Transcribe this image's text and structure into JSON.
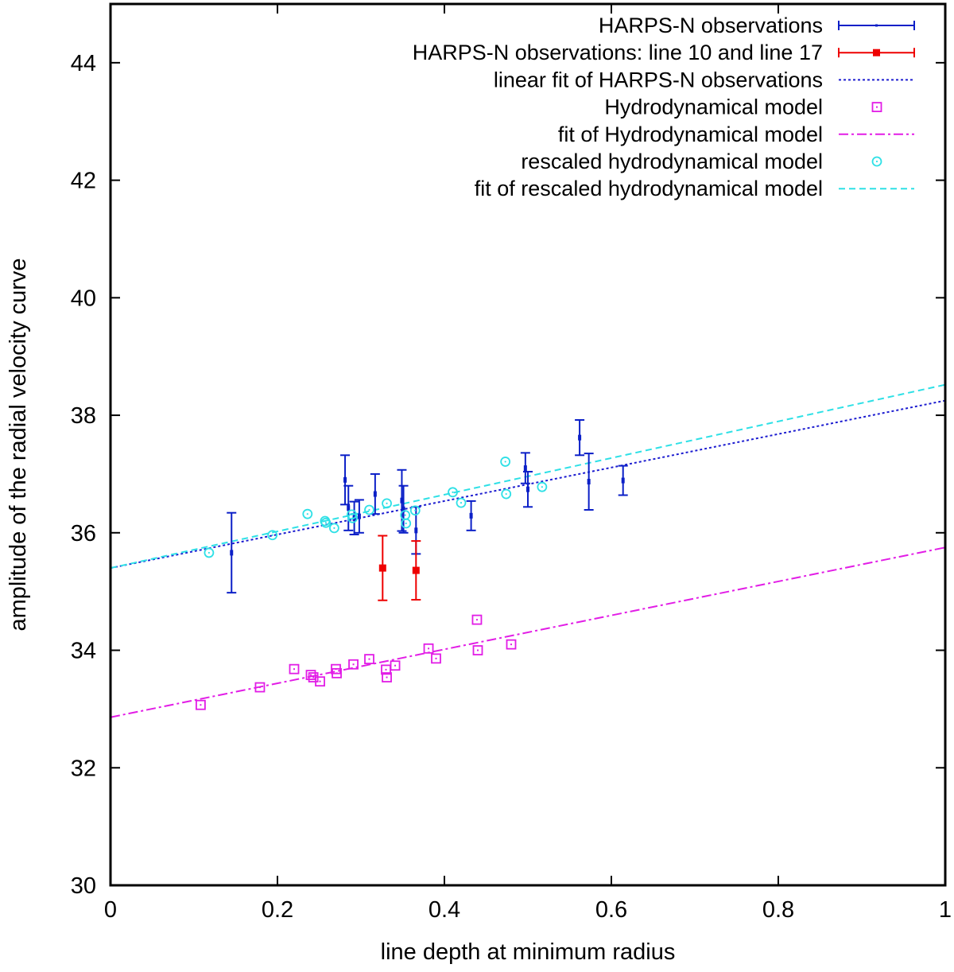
{
  "chart_data": {
    "type": "scatter",
    "xlabel": "line depth at minimum radius",
    "ylabel": "amplitude of the radial velocity curve",
    "xlim": [
      0,
      1
    ],
    "ylim": [
      30,
      45
    ],
    "xticks": [
      0,
      0.2,
      0.4,
      0.6,
      0.8,
      1
    ],
    "xtick_labels": [
      "0",
      "0.2",
      "0.4",
      "0.6",
      "0.8",
      "1"
    ],
    "yticks": [
      30,
      32,
      34,
      36,
      38,
      40,
      42,
      44
    ],
    "ytick_labels": [
      "30",
      "32",
      "34",
      "36",
      "38",
      "40",
      "42",
      "44"
    ],
    "grid": false,
    "legend_position": "top-right",
    "series": [
      {
        "name": "HARPS-N observations",
        "kind": "errorbar",
        "color": "#0b1fc7",
        "points": [
          {
            "x": 0.145,
            "y": 35.66,
            "err": 0.68
          },
          {
            "x": 0.281,
            "y": 36.9,
            "err": 0.42
          },
          {
            "x": 0.285,
            "y": 36.42,
            "err": 0.38
          },
          {
            "x": 0.292,
            "y": 36.25,
            "err": 0.28
          },
          {
            "x": 0.298,
            "y": 36.28,
            "err": 0.28
          },
          {
            "x": 0.317,
            "y": 36.66,
            "err": 0.34
          },
          {
            "x": 0.349,
            "y": 36.55,
            "err": 0.52
          },
          {
            "x": 0.351,
            "y": 36.4,
            "err": 0.4
          },
          {
            "x": 0.366,
            "y": 36.04,
            "err": 0.4
          },
          {
            "x": 0.432,
            "y": 36.29,
            "err": 0.25
          },
          {
            "x": 0.497,
            "y": 37.1,
            "err": 0.26
          },
          {
            "x": 0.5,
            "y": 36.74,
            "err": 0.3
          },
          {
            "x": 0.562,
            "y": 37.62,
            "err": 0.3
          },
          {
            "x": 0.573,
            "y": 36.87,
            "err": 0.48
          },
          {
            "x": 0.614,
            "y": 36.89,
            "err": 0.25
          }
        ]
      },
      {
        "name": "HARPS-N observations: line 10 and line 17",
        "kind": "errorbar",
        "color": "#ee0000",
        "points": [
          {
            "x": 0.326,
            "y": 35.4,
            "err": 0.55
          },
          {
            "x": 0.366,
            "y": 35.36,
            "err": 0.5
          }
        ]
      },
      {
        "name": "linear fit of HARPS-N observations",
        "kind": "line",
        "color": "#1d1dd0",
        "dash": "dotted",
        "intercept": 35.4,
        "slope": 2.85
      },
      {
        "name": "Hydrodynamical model",
        "kind": "scatter",
        "marker": "open-square",
        "color": "#e21de6",
        "points": [
          {
            "x": 0.108,
            "y": 33.07
          },
          {
            "x": 0.179,
            "y": 33.37
          },
          {
            "x": 0.22,
            "y": 33.68
          },
          {
            "x": 0.24,
            "y": 33.58
          },
          {
            "x": 0.243,
            "y": 33.54
          },
          {
            "x": 0.251,
            "y": 33.47
          },
          {
            "x": 0.27,
            "y": 33.68
          },
          {
            "x": 0.271,
            "y": 33.61
          },
          {
            "x": 0.291,
            "y": 33.76
          },
          {
            "x": 0.31,
            "y": 33.85
          },
          {
            "x": 0.33,
            "y": 33.67
          },
          {
            "x": 0.331,
            "y": 33.54
          },
          {
            "x": 0.341,
            "y": 33.74
          },
          {
            "x": 0.381,
            "y": 34.03
          },
          {
            "x": 0.39,
            "y": 33.86
          },
          {
            "x": 0.439,
            "y": 34.52
          },
          {
            "x": 0.44,
            "y": 34.0
          },
          {
            "x": 0.48,
            "y": 34.1
          }
        ]
      },
      {
        "name": "fit of Hydrodynamical model",
        "kind": "line",
        "color": "#e21de6",
        "dash": "dashdot",
        "intercept": 32.86,
        "slope": 2.89
      },
      {
        "name": "rescaled hydrodynamical model",
        "kind": "scatter",
        "marker": "open-circle",
        "color": "#2ee0e6",
        "points": [
          {
            "x": 0.118,
            "y": 35.66
          },
          {
            "x": 0.194,
            "y": 35.96
          },
          {
            "x": 0.236,
            "y": 36.32
          },
          {
            "x": 0.257,
            "y": 36.2
          },
          {
            "x": 0.258,
            "y": 36.17
          },
          {
            "x": 0.268,
            "y": 36.08
          },
          {
            "x": 0.289,
            "y": 36.31
          },
          {
            "x": 0.29,
            "y": 36.25
          },
          {
            "x": 0.31,
            "y": 36.39
          },
          {
            "x": 0.331,
            "y": 36.5
          },
          {
            "x": 0.353,
            "y": 36.3
          },
          {
            "x": 0.354,
            "y": 36.16
          },
          {
            "x": 0.365,
            "y": 36.38
          },
          {
            "x": 0.41,
            "y": 36.69
          },
          {
            "x": 0.42,
            "y": 36.51
          },
          {
            "x": 0.473,
            "y": 37.21
          },
          {
            "x": 0.474,
            "y": 36.66
          },
          {
            "x": 0.517,
            "y": 36.78
          }
        ]
      },
      {
        "name": "fit of rescaled hydrodynamical model",
        "kind": "line",
        "color": "#2ee0e6",
        "dash": "dashed",
        "intercept": 35.4,
        "slope": 3.12
      }
    ]
  }
}
